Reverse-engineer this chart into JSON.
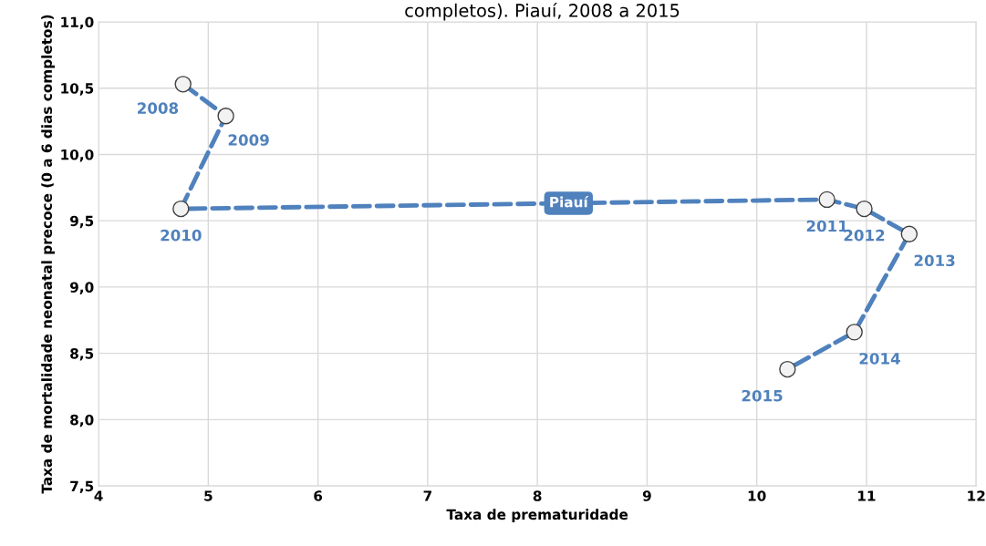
{
  "chart_data": {
    "type": "line",
    "title": "completos). Piauí, 2008 a 2015",
    "xlabel": "Taxa de prematuridade",
    "ylabel": "Taxa de mortalidade neonatal precoce (0 a 6 dias completos)",
    "series": [
      {
        "name": "Piauí",
        "color": "#4f81bd",
        "x": [
          4.77,
          5.16,
          4.75,
          10.64,
          10.98,
          11.39,
          10.89,
          10.28
        ],
        "values": [
          10.53,
          10.29,
          9.59,
          9.66,
          9.59,
          9.4,
          8.66,
          8.38
        ]
      }
    ],
    "annotations": [
      {
        "text": "2008",
        "x": 4.77,
        "y": 10.53
      },
      {
        "text": "2009",
        "x": 5.16,
        "y": 10.29
      },
      {
        "text": "2010",
        "x": 4.75,
        "y": 9.59
      },
      {
        "text": "2011",
        "x": 10.64,
        "y": 9.66
      },
      {
        "text": "2012",
        "x": 10.98,
        "y": 9.59
      },
      {
        "text": "2013",
        "x": 11.39,
        "y": 9.4
      },
      {
        "text": "2014",
        "x": 10.89,
        "y": 8.66
      },
      {
        "text": "2015",
        "x": 10.28,
        "y": 8.38
      }
    ],
    "xlim": [
      4,
      12
    ],
    "xticks": [
      4,
      5,
      6,
      7,
      8,
      9,
      10,
      11,
      12
    ],
    "ylim": [
      7.5,
      11.0
    ],
    "yticks": [
      {
        "value": 7.5,
        "label": "7,5"
      },
      {
        "value": 8.0,
        "label": "8,0"
      },
      {
        "value": 8.5,
        "label": "8,5"
      },
      {
        "value": 9.0,
        "label": "9,0"
      },
      {
        "value": 9.5,
        "label": "9,5"
      },
      {
        "value": 10.0,
        "label": "10,0"
      },
      {
        "value": 10.5,
        "label": "10,5"
      },
      {
        "value": 11.0,
        "label": "11,0"
      }
    ],
    "grid": true,
    "legend": false,
    "marker": "circle",
    "line_style": "dashed"
  }
}
